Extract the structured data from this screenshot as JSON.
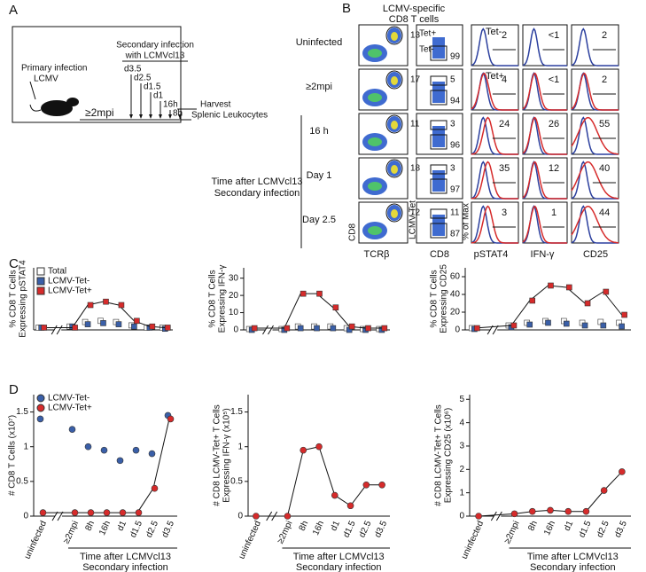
{
  "panel_labels": [
    "A",
    "B",
    "C",
    "D"
  ],
  "schematic": {
    "primary": "Primary infection",
    "primary_virus": "LCMV",
    "secondary": "Secondary infection",
    "secondary_virus": "with LCMVcl13",
    "timepoints": [
      "d3.5",
      "d2.5",
      "d1.5",
      "d1",
      "16h",
      "8h"
    ],
    "rest": "≥2mpi",
    "harvest": "Harvest",
    "harvest_sub": "Splenic Leukocytes"
  },
  "flow": {
    "title": [
      "LCMV-specific",
      "CD8 T cells"
    ],
    "row_group_label": [
      "Time after LCMVcl13",
      "Secondary infection"
    ],
    "tet_labels": [
      "Tet+",
      "Tet-"
    ],
    "hist_legend": [
      "Tet-",
      "Tet+"
    ],
    "rows": [
      {
        "label": "Uninfected",
        "gate": "13",
        "tet": [
          "99"
        ],
        "pstat4": "2",
        "ifng": "<1",
        "cd25": "2"
      },
      {
        "label": "≥2mpi",
        "gate": "17",
        "tet": [
          "5",
          "94"
        ],
        "pstat4": "4",
        "ifng": "<1",
        "cd25": "2"
      },
      {
        "label": "16 h",
        "gate": "11",
        "tet": [
          "3",
          "96"
        ],
        "pstat4": "24",
        "ifng": "26",
        "cd25": "55"
      },
      {
        "label": "Day 1",
        "gate": "18",
        "tet": [
          "3",
          "97"
        ],
        "pstat4": "35",
        "ifng": "12",
        "cd25": "40"
      },
      {
        "label": "Day 2.5",
        "gate": "12",
        "tet": [
          "11",
          "87"
        ],
        "pstat4": "3",
        "ifng": "1",
        "cd25": "44"
      }
    ],
    "axis_labels": {
      "col1_y": "CD8",
      "col1_x": "TCRβ",
      "col2_x": "CD8",
      "col2_y": "LCMV-Tet",
      "hist_y": "% of Max",
      "pstat4": "pSTAT4",
      "ifng": "IFN-γ",
      "cd25": "CD25"
    }
  },
  "chart_data": [
    {
      "type": "dot",
      "ylabel": [
        "% CD8 T Cells",
        "Expressing pSTAT4"
      ],
      "categories": [
        null,
        null,
        null,
        null,
        null,
        null,
        null,
        null
      ],
      "ylim": [
        0,
        55
      ],
      "legend": "upper left",
      "series": [
        {
          "name": "Total",
          "color": "#ffffff",
          "marker": "square",
          "values": [
            2,
            3,
            7,
            8,
            7,
            4,
            2,
            2
          ]
        },
        {
          "name": "LCMV-Tet-",
          "color": "#3a5fa8",
          "marker": "square",
          "values": [
            2,
            3,
            5,
            6,
            5,
            3,
            2,
            1
          ]
        },
        {
          "name": "LCMV-Tet+",
          "color": "#d62b2b",
          "marker": "square",
          "line": true,
          "values": [
            2,
            2,
            22,
            25,
            22,
            8,
            3,
            2
          ]
        }
      ]
    },
    {
      "type": "dot",
      "ylabel": [
        "% CD8 T Cells",
        "Expressing IFN-γ"
      ],
      "categories": [
        null,
        null,
        null,
        null,
        null,
        null,
        null,
        null
      ],
      "ylim": [
        0,
        36
      ],
      "yticks": [
        0,
        10,
        20,
        30
      ],
      "series": [
        {
          "color": "#ffffff",
          "marker": "square",
          "values": [
            0.5,
            0.5,
            2,
            2,
            2,
            1,
            0.5,
            0.5
          ]
        },
        {
          "color": "#3a5fa8",
          "marker": "square",
          "values": [
            0,
            0,
            1,
            1,
            1,
            0,
            0,
            0
          ]
        },
        {
          "color": "#d62b2b",
          "marker": "square",
          "line": true,
          "values": [
            1,
            1,
            21,
            21,
            13,
            2,
            1,
            1
          ]
        }
      ]
    },
    {
      "type": "dot",
      "ylabel": [
        "% CD8 T Cells",
        "Expressing CD25"
      ],
      "categories": [
        null,
        null,
        null,
        null,
        null,
        null,
        null,
        null
      ],
      "ylim": [
        0,
        70
      ],
      "yticks": [
        0,
        20,
        40,
        60
      ],
      "series": [
        {
          "color": "#ffffff",
          "marker": "square",
          "values": [
            2,
            5,
            8,
            10,
            10,
            8,
            9,
            8
          ]
        },
        {
          "color": "#3a5fa8",
          "marker": "square",
          "values": [
            1,
            3,
            6,
            8,
            7,
            5,
            5,
            4
          ]
        },
        {
          "color": "#d62b2b",
          "marker": "square",
          "line": true,
          "values": [
            2,
            5,
            33,
            50,
            48,
            30,
            43,
            17
          ]
        }
      ]
    },
    {
      "type": "dot",
      "ylabel": [
        "# CD8 T Cells (x10⁷)"
      ],
      "xlabel": [
        "Time after LCMVcl13",
        "Secondary infection"
      ],
      "categories": [
        "uninfected",
        "≥2mpi",
        "8h",
        "16h",
        "d1",
        "d1.5",
        "d2.5",
        "d3.5"
      ],
      "ylim": [
        0,
        1.75
      ],
      "yticks": [
        0,
        0.5,
        1,
        1.5
      ],
      "legend": "upper left",
      "series": [
        {
          "name": "LCMV-Tet-",
          "color": "#3a5fa8",
          "marker": "circle",
          "values": [
            1.4,
            1.25,
            1.0,
            0.95,
            0.8,
            0.95,
            0.9,
            1.45
          ]
        },
        {
          "name": "LCMV-Tet+",
          "color": "#d62b2b",
          "marker": "circle",
          "line": true,
          "values": [
            0.05,
            0.05,
            0.05,
            0.05,
            0.05,
            0.05,
            0.4,
            1.4
          ]
        }
      ]
    },
    {
      "type": "dot",
      "ylabel": [
        "# CD8 LCMV-Tet+ T Cells",
        "Expressing IFN-γ (x10⁵)"
      ],
      "xlabel": [
        "Time after LCMVcl13",
        "Secondary infection"
      ],
      "categories": [
        "uninfected",
        "≥2mpi",
        "8h",
        "16h",
        "d1",
        "d1.5",
        "d2.5",
        "d3.5"
      ],
      "ylim": [
        0,
        1.75
      ],
      "yticks": [
        0,
        0.5,
        1,
        1.5
      ],
      "series": [
        {
          "color": "#d62b2b",
          "marker": "circle",
          "line": true,
          "values": [
            0,
            0,
            0.95,
            1.0,
            0.3,
            0.15,
            0.45,
            0.45
          ]
        }
      ]
    },
    {
      "type": "dot",
      "ylabel": [
        "# CD8 LCMV-Tet+ T Cells",
        "Expressing CD25 (x10⁶)"
      ],
      "xlabel": [
        "Time after LCMVcl13",
        "Secondary infection"
      ],
      "categories": [
        "uninfected",
        "≥2mpi",
        "8h",
        "16h",
        "d1",
        "d1.5",
        "d2.5",
        "d3.5"
      ],
      "ylim": [
        0,
        5.2
      ],
      "yticks": [
        0,
        1,
        2,
        3,
        4,
        5
      ],
      "series": [
        {
          "color": "#d62b2b",
          "marker": "circle",
          "line": true,
          "values": [
            0,
            0.1,
            0.2,
            0.25,
            0.2,
            0.2,
            1.1,
            1.9
          ]
        }
      ]
    }
  ]
}
